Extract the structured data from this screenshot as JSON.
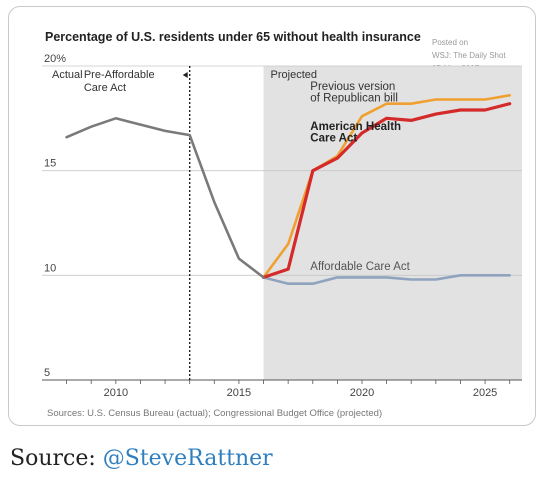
{
  "chart_data": {
    "type": "line",
    "title": "Percentage of U.S. residents under 65 without health insurance",
    "watermark": [
      "Posted on",
      "WSJ: The Daily Shot",
      "05-May-2017"
    ],
    "xlim": [
      2007,
      2026.5
    ],
    "ylim": [
      5,
      20
    ],
    "y_ticks": [
      {
        "value": 20,
        "label": "20%"
      },
      {
        "value": 15,
        "label": "15"
      },
      {
        "value": 10,
        "label": "10"
      },
      {
        "value": 5,
        "label": "5"
      }
    ],
    "x_ticks": [
      {
        "value": 2010,
        "label": "2010"
      },
      {
        "value": 2015,
        "label": "2015"
      },
      {
        "value": 2020,
        "label": "2020"
      },
      {
        "value": 2025,
        "label": "2025"
      }
    ],
    "grid": true,
    "regions": {
      "actual_label": "Actual",
      "pre_aca_label": [
        "Pre-Affordable",
        "Care Act"
      ],
      "aca_start": 2013,
      "projected_label": "Projected",
      "projected_start": 2016
    },
    "series": [
      {
        "name": "Actual",
        "color": "#7a7a7a",
        "x": [
          2008,
          2009,
          2010,
          2011,
          2012,
          2013,
          2014,
          2015,
          2016
        ],
        "y": [
          16.6,
          17.1,
          17.5,
          17.2,
          16.9,
          16.7,
          13.5,
          10.8,
          9.9
        ]
      },
      {
        "name": "Previous version of Republican bill",
        "label_lines": [
          "Previous version",
          "of Republican bill"
        ],
        "color": "#f0a030",
        "x": [
          2016,
          2017,
          2018,
          2019,
          2020,
          2021,
          2022,
          2023,
          2024,
          2025,
          2026
        ],
        "y": [
          9.9,
          11.5,
          15.0,
          15.7,
          17.6,
          18.2,
          18.2,
          18.4,
          18.4,
          18.4,
          18.6
        ]
      },
      {
        "name": "American Health Care Act",
        "label_lines": [
          "American Health",
          "Care Act"
        ],
        "color": "#d42a2a",
        "x": [
          2016,
          2017,
          2018,
          2019,
          2020,
          2021,
          2022,
          2023,
          2024,
          2025,
          2026
        ],
        "y": [
          9.9,
          10.3,
          15.0,
          15.6,
          16.8,
          17.5,
          17.4,
          17.7,
          17.9,
          17.9,
          18.2
        ]
      },
      {
        "name": "Affordable Care Act",
        "label_lines": [
          "Affordable Care Act"
        ],
        "color": "#8fa3bf",
        "x": [
          2016,
          2017,
          2018,
          2019,
          2020,
          2021,
          2022,
          2023,
          2024,
          2025,
          2026
        ],
        "y": [
          9.9,
          9.6,
          9.6,
          9.9,
          9.9,
          9.9,
          9.8,
          9.8,
          10.0,
          10.0,
          10.0
        ]
      }
    ]
  },
  "footer": {
    "sources": "Sources: U.S. Census Bureau (actual); Congressional Budget Office (projected)"
  },
  "credit": {
    "prefix": "Source: ",
    "handle": "@SteveRattner"
  }
}
